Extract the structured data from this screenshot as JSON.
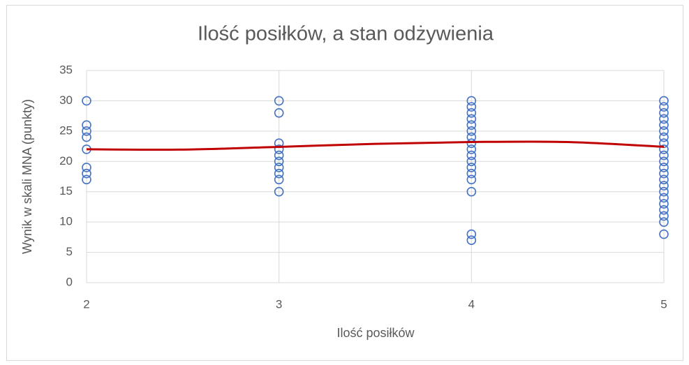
{
  "chart_data": {
    "type": "scatter",
    "title": "Ilość posiłków, a stan odżywienia",
    "xlabel": "Ilość posiłków",
    "ylabel": "Wynik w skali MNA (punkty)",
    "xlim": [
      2,
      5
    ],
    "xticks": [
      2,
      3,
      4,
      5
    ],
    "ylim": [
      0,
      35
    ],
    "yticks": [
      0,
      5,
      10,
      15,
      20,
      25,
      30,
      35
    ],
    "grid": true,
    "series": [
      {
        "color": "#4472c4",
        "marker": "open-circle",
        "x": [
          2,
          2,
          2,
          2,
          2,
          2,
          2,
          2,
          3,
          3,
          3,
          3,
          3,
          3,
          3,
          3,
          3,
          3,
          4,
          4,
          4,
          4,
          4,
          4,
          4,
          4,
          4,
          4,
          4,
          4,
          4,
          4,
          4,
          4,
          4,
          5,
          5,
          5,
          5,
          5,
          5,
          5,
          5,
          5,
          5,
          5,
          5,
          5,
          5,
          5,
          5,
          5,
          5,
          5,
          5,
          5,
          5
        ],
        "values": [
          30,
          26,
          25,
          24,
          22,
          19,
          18,
          17,
          30,
          28,
          23,
          22,
          21,
          20,
          19,
          18,
          17,
          15,
          30,
          29,
          28,
          27,
          26,
          25,
          24,
          23,
          22,
          21,
          20,
          19,
          18,
          17,
          15,
          8,
          7,
          30,
          29,
          28,
          27,
          26,
          25,
          24,
          23,
          22,
          21,
          20,
          19,
          18,
          17,
          16,
          15,
          14,
          13,
          12,
          11,
          10,
          8
        ]
      },
      {
        "color": "#c00000",
        "marker": "smooth-line",
        "x": [
          2,
          2.5,
          3,
          3.5,
          4,
          4.5,
          5
        ],
        "values": [
          22,
          21.95,
          22.4,
          22.9,
          23.2,
          23.2,
          22.4
        ]
      }
    ]
  }
}
